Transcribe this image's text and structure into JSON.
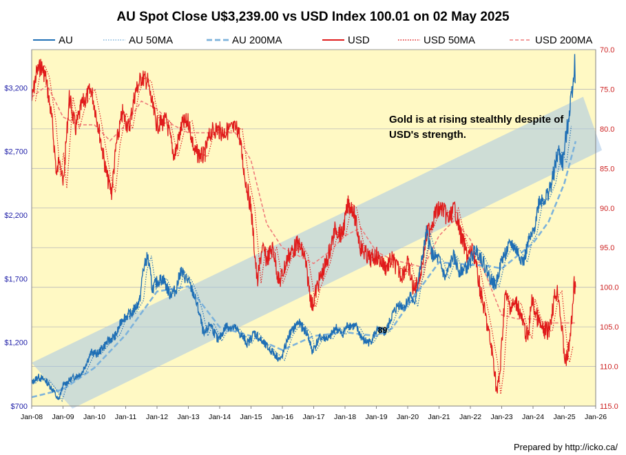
{
  "chart_data": {
    "type": "line",
    "title": "AU Spot Close U$3,239.00 vs USD Index 100.01 on 02 May 2025",
    "footer": "Prepared by http://icko.ca/",
    "annotation": "Gold is at rising stealthly despite of\nUSD's strength.",
    "point_label": "89",
    "colors": {
      "au": "#1f6fb5",
      "au_ma": "#7cb2db",
      "usd": "#e01b1b",
      "usd_ma": "#ef7a7a",
      "plot_bg": "#fff9c4",
      "band": "#a6c7e6",
      "left_ticks": "#1a1aa6",
      "right_ticks": "#cc1f1f"
    },
    "legend": [
      "AU",
      "AU 50MA",
      "AU 200MA",
      "USD",
      "USD 50MA",
      "USD 200MA"
    ],
    "x_ticks": [
      "Jan-08",
      "Jan-09",
      "Jan-10",
      "Jan-11",
      "Jan-12",
      "Jan-13",
      "Jan-14",
      "Jan-15",
      "Jan-16",
      "Jan-17",
      "Jan-18",
      "Jan-19",
      "Jan-20",
      "Jan-21",
      "Jan-22",
      "Jan-23",
      "Jan-24",
      "Jan-25",
      "Jan-26"
    ],
    "x_range": [
      2008.0,
      2026.0
    ],
    "y_left": {
      "min": 700,
      "max": 3500,
      "ticks": [
        700,
        1200,
        1700,
        2200,
        2700,
        3200
      ],
      "tick_labels": [
        "$700",
        "$1,200",
        "$1,700",
        "$2,200",
        "$2,700",
        "$3,200"
      ]
    },
    "y_right": {
      "min": 115,
      "max": 70,
      "inverted": true,
      "ticks": [
        70,
        75,
        80,
        85,
        90,
        95,
        100,
        105,
        110,
        115
      ],
      "tick_labels": [
        "70.0",
        "75.0",
        "80.0",
        "85.0",
        "90.0",
        "95.0",
        "100.0",
        "105.0",
        "110.0",
        "115.0"
      ]
    },
    "grid": true,
    "au_series": [
      [
        2008.0,
        880
      ],
      [
        2008.2,
        930
      ],
      [
        2008.45,
        900
      ],
      [
        2008.7,
        820
      ],
      [
        2008.85,
        740
      ],
      [
        2009.0,
        860
      ],
      [
        2009.3,
        920
      ],
      [
        2009.6,
        960
      ],
      [
        2009.9,
        1120
      ],
      [
        2010.1,
        1110
      ],
      [
        2010.4,
        1200
      ],
      [
        2010.7,
        1260
      ],
      [
        2010.9,
        1390
      ],
      [
        2011.2,
        1430
      ],
      [
        2011.45,
        1530
      ],
      [
        2011.55,
        1760
      ],
      [
        2011.7,
        1880
      ],
      [
        2011.85,
        1620
      ],
      [
        2012.0,
        1680
      ],
      [
        2012.2,
        1700
      ],
      [
        2012.4,
        1580
      ],
      [
        2012.6,
        1610
      ],
      [
        2012.75,
        1760
      ],
      [
        2013.0,
        1680
      ],
      [
        2013.2,
        1560
      ],
      [
        2013.35,
        1430
      ],
      [
        2013.5,
        1250
      ],
      [
        2013.7,
        1350
      ],
      [
        2013.95,
        1210
      ],
      [
        2014.2,
        1330
      ],
      [
        2014.5,
        1310
      ],
      [
        2014.9,
        1190
      ],
      [
        2015.1,
        1280
      ],
      [
        2015.4,
        1190
      ],
      [
        2015.7,
        1120
      ],
      [
        2015.95,
        1060
      ],
      [
        2016.2,
        1250
      ],
      [
        2016.5,
        1360
      ],
      [
        2016.8,
        1270
      ],
      [
        2016.95,
        1130
      ],
      [
        2017.2,
        1240
      ],
      [
        2017.5,
        1230
      ],
      [
        2017.7,
        1320
      ],
      [
        2017.9,
        1260
      ],
      [
        2018.1,
        1340
      ],
      [
        2018.35,
        1320
      ],
      [
        2018.6,
        1210
      ],
      [
        2018.8,
        1200
      ],
      [
        2019.0,
        1290
      ],
      [
        2019.3,
        1280
      ],
      [
        2019.5,
        1410
      ],
      [
        2019.7,
        1500
      ],
      [
        2019.9,
        1480
      ],
      [
        2020.1,
        1580
      ],
      [
        2020.2,
        1480
      ],
      [
        2020.35,
        1700
      ],
      [
        2020.6,
        2060
      ],
      [
        2020.8,
        1880
      ],
      [
        2021.0,
        1850
      ],
      [
        2021.2,
        1700
      ],
      [
        2021.45,
        1880
      ],
      [
        2021.65,
        1760
      ],
      [
        2021.9,
        1790
      ],
      [
        2022.15,
        1930
      ],
      [
        2022.3,
        1890
      ],
      [
        2022.6,
        1720
      ],
      [
        2022.8,
        1640
      ],
      [
        2023.0,
        1850
      ],
      [
        2023.3,
        1980
      ],
      [
        2023.45,
        1930
      ],
      [
        2023.7,
        1830
      ],
      [
        2023.85,
        1990
      ],
      [
        2024.0,
        2050
      ],
      [
        2024.2,
        2320
      ],
      [
        2024.4,
        2330
      ],
      [
        2024.6,
        2450
      ],
      [
        2024.8,
        2700
      ],
      [
        2024.95,
        2610
      ],
      [
        2025.1,
        2900
      ],
      [
        2025.3,
        3300
      ],
      [
        2025.33,
        3430
      ],
      [
        2025.36,
        3239
      ]
    ],
    "au_ma200": [
      [
        2008.0,
        770
      ],
      [
        2009.0,
        830
      ],
      [
        2010.0,
        1000
      ],
      [
        2011.0,
        1260
      ],
      [
        2012.0,
        1600
      ],
      [
        2013.0,
        1640
      ],
      [
        2013.5,
        1480
      ],
      [
        2014.0,
        1320
      ],
      [
        2015.0,
        1250
      ],
      [
        2016.0,
        1140
      ],
      [
        2017.0,
        1250
      ],
      [
        2018.0,
        1280
      ],
      [
        2019.0,
        1250
      ],
      [
        2019.5,
        1310
      ],
      [
        2020.0,
        1490
      ],
      [
        2021.0,
        1830
      ],
      [
        2022.0,
        1810
      ],
      [
        2022.6,
        1800
      ],
      [
        2023.0,
        1780
      ],
      [
        2024.0,
        1980
      ],
      [
        2024.5,
        2150
      ],
      [
        2025.0,
        2450
      ],
      [
        2025.36,
        2780
      ]
    ],
    "usd_series": [
      [
        2008.0,
        76.5
      ],
      [
        2008.15,
        73.0
      ],
      [
        2008.3,
        72.0
      ],
      [
        2008.45,
        73.5
      ],
      [
        2008.65,
        79.0
      ],
      [
        2008.8,
        86.0
      ],
      [
        2008.9,
        83.0
      ],
      [
        2009.0,
        87.5
      ],
      [
        2009.2,
        76.0
      ],
      [
        2009.4,
        80.0
      ],
      [
        2009.6,
        77.0
      ],
      [
        2009.9,
        75.0
      ],
      [
        2010.1,
        79.0
      ],
      [
        2010.4,
        86.0
      ],
      [
        2010.55,
        88.0
      ],
      [
        2010.7,
        82.0
      ],
      [
        2010.9,
        78.0
      ],
      [
        2011.1,
        80.0
      ],
      [
        2011.3,
        75.5
      ],
      [
        2011.5,
        73.5
      ],
      [
        2011.7,
        74.0
      ],
      [
        2011.9,
        78.0
      ],
      [
        2012.0,
        79.5
      ],
      [
        2012.3,
        79.0
      ],
      [
        2012.55,
        83.5
      ],
      [
        2012.8,
        79.5
      ],
      [
        2013.0,
        79.0
      ],
      [
        2013.2,
        83.0
      ],
      [
        2013.5,
        83.5
      ],
      [
        2013.7,
        80.5
      ],
      [
        2013.9,
        80.0
      ],
      [
        2014.1,
        80.5
      ],
      [
        2014.4,
        80.0
      ],
      [
        2014.6,
        80.0
      ],
      [
        2014.8,
        86.0
      ],
      [
        2015.0,
        90.0
      ],
      [
        2015.2,
        99.5
      ],
      [
        2015.35,
        95.0
      ],
      [
        2015.5,
        96.5
      ],
      [
        2015.7,
        95.0
      ],
      [
        2015.9,
        99.5
      ],
      [
        2016.2,
        96.0
      ],
      [
        2016.5,
        94.5
      ],
      [
        2016.7,
        96.0
      ],
      [
        2016.95,
        102.5
      ],
      [
        2017.1,
        100.0
      ],
      [
        2017.4,
        97.0
      ],
      [
        2017.7,
        92.5
      ],
      [
        2017.9,
        93.5
      ],
      [
        2018.1,
        89.5
      ],
      [
        2018.25,
        90.0
      ],
      [
        2018.5,
        95.0
      ],
      [
        2018.8,
        96.5
      ],
      [
        2019.0,
        96.0
      ],
      [
        2019.3,
        97.5
      ],
      [
        2019.5,
        96.5
      ],
      [
        2019.8,
        98.5
      ],
      [
        2020.0,
        97.0
      ],
      [
        2020.2,
        100.5
      ],
      [
        2020.4,
        98.5
      ],
      [
        2020.6,
        93.5
      ],
      [
        2020.9,
        90.5
      ],
      [
        2021.1,
        90.0
      ],
      [
        2021.3,
        91.5
      ],
      [
        2021.5,
        90.0
      ],
      [
        2021.7,
        93.5
      ],
      [
        2021.9,
        96.0
      ],
      [
        2022.1,
        95.5
      ],
      [
        2022.3,
        100.0
      ],
      [
        2022.55,
        105.0
      ],
      [
        2022.75,
        109.5
      ],
      [
        2022.85,
        113.5
      ],
      [
        2022.95,
        110.5
      ],
      [
        2023.1,
        101.0
      ],
      [
        2023.3,
        102.5
      ],
      [
        2023.5,
        102.0
      ],
      [
        2023.7,
        105.0
      ],
      [
        2023.85,
        106.5
      ],
      [
        2023.95,
        101.5
      ],
      [
        2024.1,
        103.5
      ],
      [
        2024.3,
        105.5
      ],
      [
        2024.5,
        105.5
      ],
      [
        2024.7,
        101.0
      ],
      [
        2024.8,
        100.5
      ],
      [
        2024.9,
        104.5
      ],
      [
        2025.0,
        108.5
      ],
      [
        2025.05,
        109.5
      ],
      [
        2025.15,
        107.5
      ],
      [
        2025.25,
        103.5
      ],
      [
        2025.3,
        99.5
      ],
      [
        2025.36,
        100.0
      ]
    ],
    "usd_ma200": [
      [
        2008.0,
        76.0
      ],
      [
        2008.5,
        74.5
      ],
      [
        2009.0,
        78.5
      ],
      [
        2009.5,
        79.5
      ],
      [
        2010.0,
        79.5
      ],
      [
        2010.5,
        81.5
      ],
      [
        2011.0,
        79.5
      ],
      [
        2011.5,
        76.5
      ],
      [
        2012.0,
        77.5
      ],
      [
        2012.5,
        79.5
      ],
      [
        2013.0,
        80.5
      ],
      [
        2013.5,
        80.5
      ],
      [
        2014.0,
        80.5
      ],
      [
        2014.5,
        80.5
      ],
      [
        2015.0,
        84.0
      ],
      [
        2015.5,
        92.0
      ],
      [
        2016.0,
        95.0
      ],
      [
        2016.5,
        96.0
      ],
      [
        2017.0,
        97.0
      ],
      [
        2017.5,
        95.5
      ],
      [
        2018.0,
        93.5
      ],
      [
        2018.5,
        92.5
      ],
      [
        2019.0,
        95.5
      ],
      [
        2019.5,
        96.5
      ],
      [
        2020.0,
        97.0
      ],
      [
        2020.5,
        97.5
      ],
      [
        2021.0,
        93.5
      ],
      [
        2021.5,
        91.5
      ],
      [
        2022.0,
        94.0
      ],
      [
        2022.5,
        98.5
      ],
      [
        2023.0,
        103.5
      ],
      [
        2023.5,
        104.0
      ],
      [
        2024.0,
        104.0
      ],
      [
        2024.5,
        104.5
      ],
      [
        2025.0,
        104.5
      ],
      [
        2025.36,
        104.5
      ]
    ]
  }
}
